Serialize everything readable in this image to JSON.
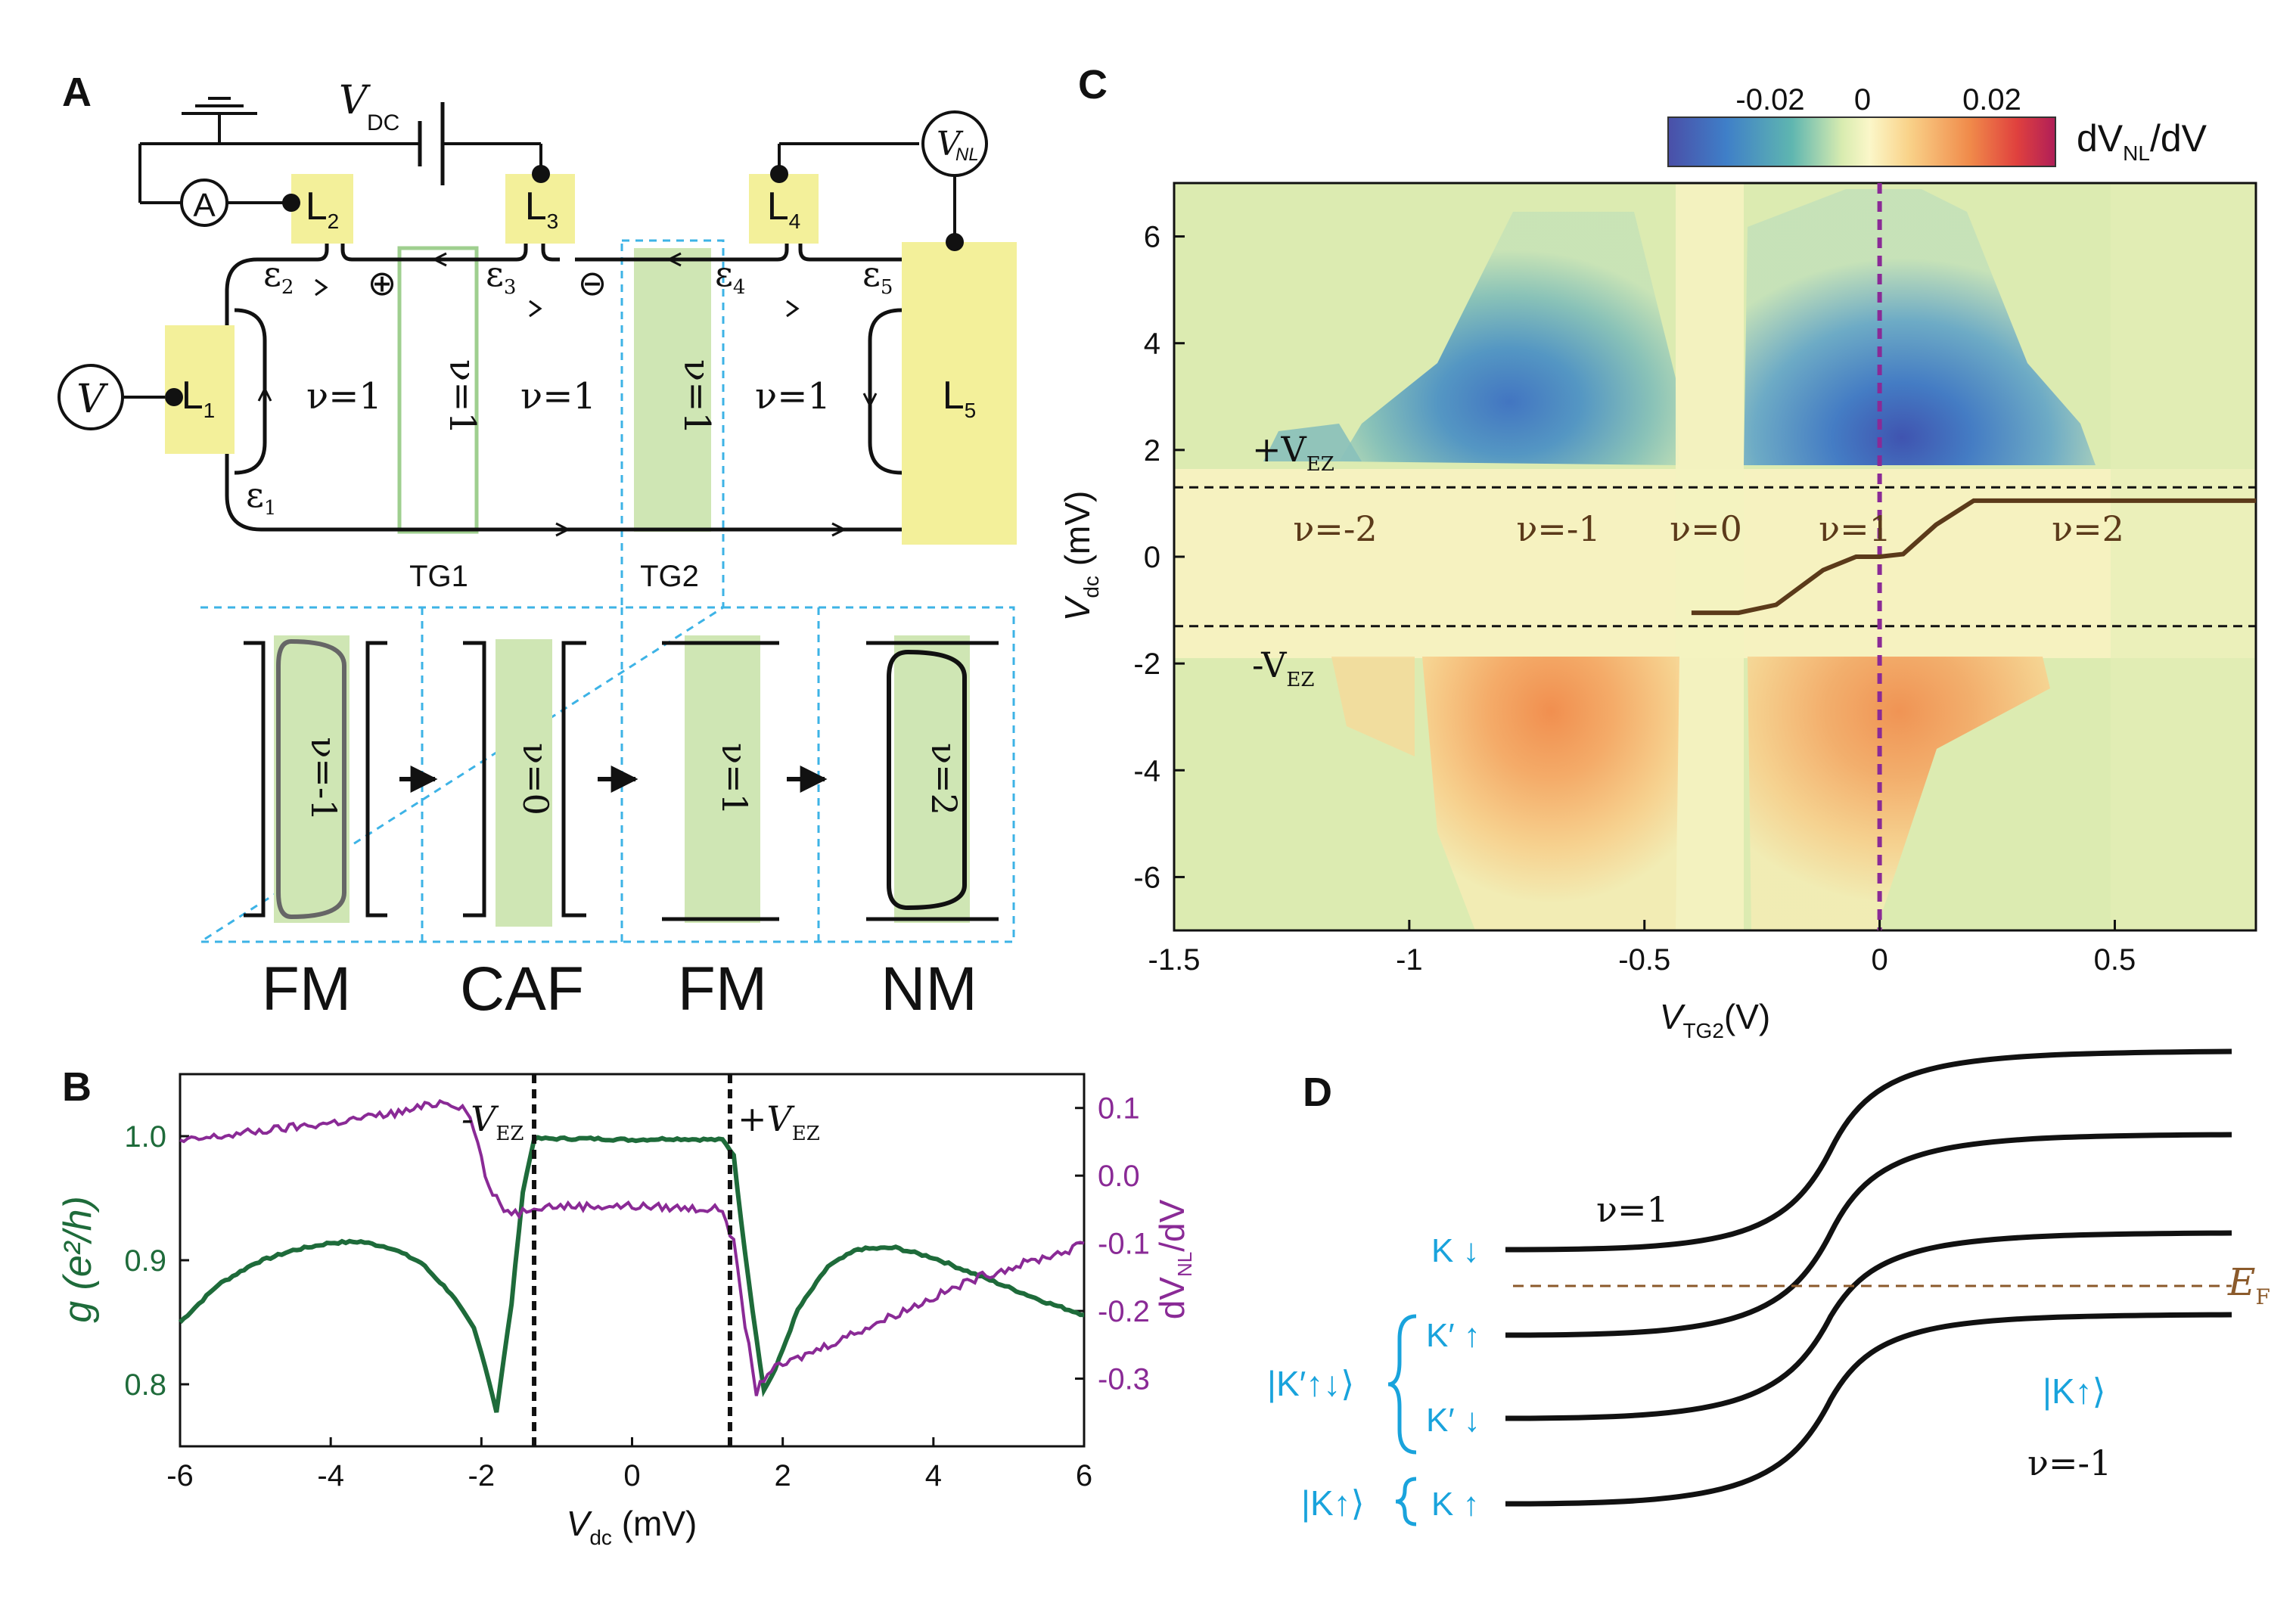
{
  "panelA": {
    "letter": "A",
    "vdc": "V",
    "vdc_sub": "DC",
    "ammeter": "A",
    "vsrc": "V",
    "vnl": "V",
    "vnl_sub": "NL",
    "leads": [
      {
        "id": "L",
        "sub": "1"
      },
      {
        "id": "L",
        "sub": "2"
      },
      {
        "id": "L",
        "sub": "3"
      },
      {
        "id": "L",
        "sub": "4"
      },
      {
        "id": "L",
        "sub": "5"
      }
    ],
    "eps": [
      {
        "s": "ε",
        "sub": "1"
      },
      {
        "s": "ε",
        "sub": "2"
      },
      {
        "s": "ε",
        "sub": "3"
      },
      {
        "s": "ε",
        "sub": "4"
      },
      {
        "s": "ε",
        "sub": "5"
      }
    ],
    "plus": "⊕",
    "minus": "⊖",
    "nu_regions": [
      "ν=1",
      "ν=1",
      "ν=1"
    ],
    "strip_labels": [
      "ν=1",
      "ν=1"
    ],
    "tg1": "TG1",
    "tg2": "TG2",
    "bottom_nu": [
      "ν=-1",
      "ν=0",
      "ν=1",
      "ν=2"
    ],
    "phases": [
      "FM",
      "CAF",
      "FM",
      "NM"
    ]
  },
  "panelB": {
    "letter": "B",
    "chart_data": {
      "type": "line",
      "xlabel": "V",
      "xlabel_sub": "dc",
      "xlabel_unit": " (mV)",
      "xlim": [
        -6,
        6
      ],
      "xticks": [
        "-6",
        "-4",
        "-2",
        "0",
        "2",
        "4",
        "6"
      ],
      "ylabel_left": "g (e²/h)",
      "ylim_left": [
        0.75,
        1.05
      ],
      "yticks_left": [
        "0.8",
        "0.9",
        "1.0"
      ],
      "ylabel_right": "dV",
      "ylabel_right_sub": "NL",
      "ylabel_right_tail": "/dV",
      "ylim_right": [
        -0.4,
        0.15
      ],
      "yticks_right": [
        "0.1",
        "0.0",
        "-0.1",
        "-0.2",
        "-0.3"
      ],
      "markers": [
        {
          "label": "-V",
          "sub": "EZ",
          "x": -1.3
        },
        {
          "label": "+V",
          "sub": "EZ",
          "x": 1.3
        }
      ],
      "series": [
        {
          "axis": "left",
          "color": "#1e6b3a",
          "x": [
            -6,
            -5.5,
            -5,
            -4.5,
            -4,
            -3.6,
            -3.2,
            -2.8,
            -2.4,
            -2.1,
            -1.95,
            -1.8,
            -1.6,
            -1.45,
            -1.3,
            -0.5,
            0,
            0.5,
            1.2,
            1.35,
            1.45,
            1.6,
            1.75,
            1.9,
            2.2,
            2.6,
            3,
            3.5,
            4,
            4.5,
            5,
            5.5,
            6
          ],
          "y": [
            0.85,
            0.88,
            0.898,
            0.908,
            0.914,
            0.915,
            0.91,
            0.898,
            0.873,
            0.845,
            0.815,
            0.778,
            0.865,
            0.955,
            0.998,
            0.998,
            0.997,
            0.998,
            0.997,
            0.985,
            0.93,
            0.86,
            0.795,
            0.812,
            0.86,
            0.895,
            0.909,
            0.91,
            0.902,
            0.89,
            0.878,
            0.866,
            0.856
          ]
        },
        {
          "axis": "right",
          "color": "#8a2a96",
          "x": [
            -6,
            -5,
            -4,
            -3,
            -2.5,
            -2.2,
            -2.05,
            -1.9,
            -1.7,
            -1.5,
            -1.3,
            0,
            1.2,
            1.35,
            1.5,
            1.65,
            1.8,
            2.2,
            2.8,
            3.4,
            4,
            4.6,
            5.2,
            5.8,
            6
          ],
          "y": [
            0.05,
            0.065,
            0.078,
            0.095,
            0.11,
            0.1,
            0.05,
            -0.02,
            -0.05,
            -0.055,
            -0.045,
            -0.045,
            -0.05,
            -0.1,
            -0.22,
            -0.32,
            -0.29,
            -0.27,
            -0.24,
            -0.21,
            -0.18,
            -0.15,
            -0.13,
            -0.11,
            -0.1
          ]
        }
      ]
    }
  },
  "panelC": {
    "letter": "C",
    "chart_data": {
      "type": "heatmap",
      "xlabel": "V",
      "xlabel_sub": "TG2",
      "xlabel_unit": "(V)",
      "xlim": [
        -1.5,
        0.8
      ],
      "xticks": [
        "-1.5",
        "-1",
        "-0.5",
        "0",
        "0.5"
      ],
      "ylabel": "V",
      "ylabel_sub": "dc",
      "ylabel_unit": " (mV)",
      "ylim": [
        -7,
        7
      ],
      "yticks": [
        "6",
        "4",
        "2",
        "0",
        "-2",
        "-4",
        "-6"
      ],
      "colorbar": {
        "label": "dV",
        "label_sub": "NL",
        "label_tail": "/dV",
        "ticks": [
          "-0.02",
          "0",
          "0.02"
        ],
        "range": [
          -0.03,
          0.03
        ]
      },
      "annotations": {
        "plus": "+V",
        "plus_sub": "EZ",
        "minus": "-V",
        "minus_sub": "EZ"
      },
      "nu_labels": [
        "ν=-2",
        "ν=-1",
        "ν=0",
        "ν=1",
        "ν=2"
      ],
      "vez": 1.3,
      "vline_x": 0,
      "step_trace": {
        "color": "#5b3a1a",
        "x": [
          -0.4,
          -0.3,
          -0.22,
          -0.12,
          -0.05,
          0,
          0.05,
          0.12,
          0.2,
          0.8
        ],
        "y": [
          -1.05,
          -1.05,
          -0.9,
          -0.25,
          0,
          0,
          0.05,
          0.6,
          1.05,
          1.05
        ]
      }
    }
  },
  "panelD": {
    "letter": "D",
    "nu_top": "ν=1",
    "nu_bottom": "ν=-1",
    "ef": "E",
    "ef_sub": "F",
    "levels": [
      "K ↓",
      "K′ ↑",
      "K′ ↓",
      "K ↑"
    ],
    "kets": [
      "|K′↑↓⟩",
      "|K↑⟩"
    ],
    "right_ket": "|K↑⟩",
    "cyan": "#19a3dc",
    "ef_color": "#8b5a2b"
  }
}
